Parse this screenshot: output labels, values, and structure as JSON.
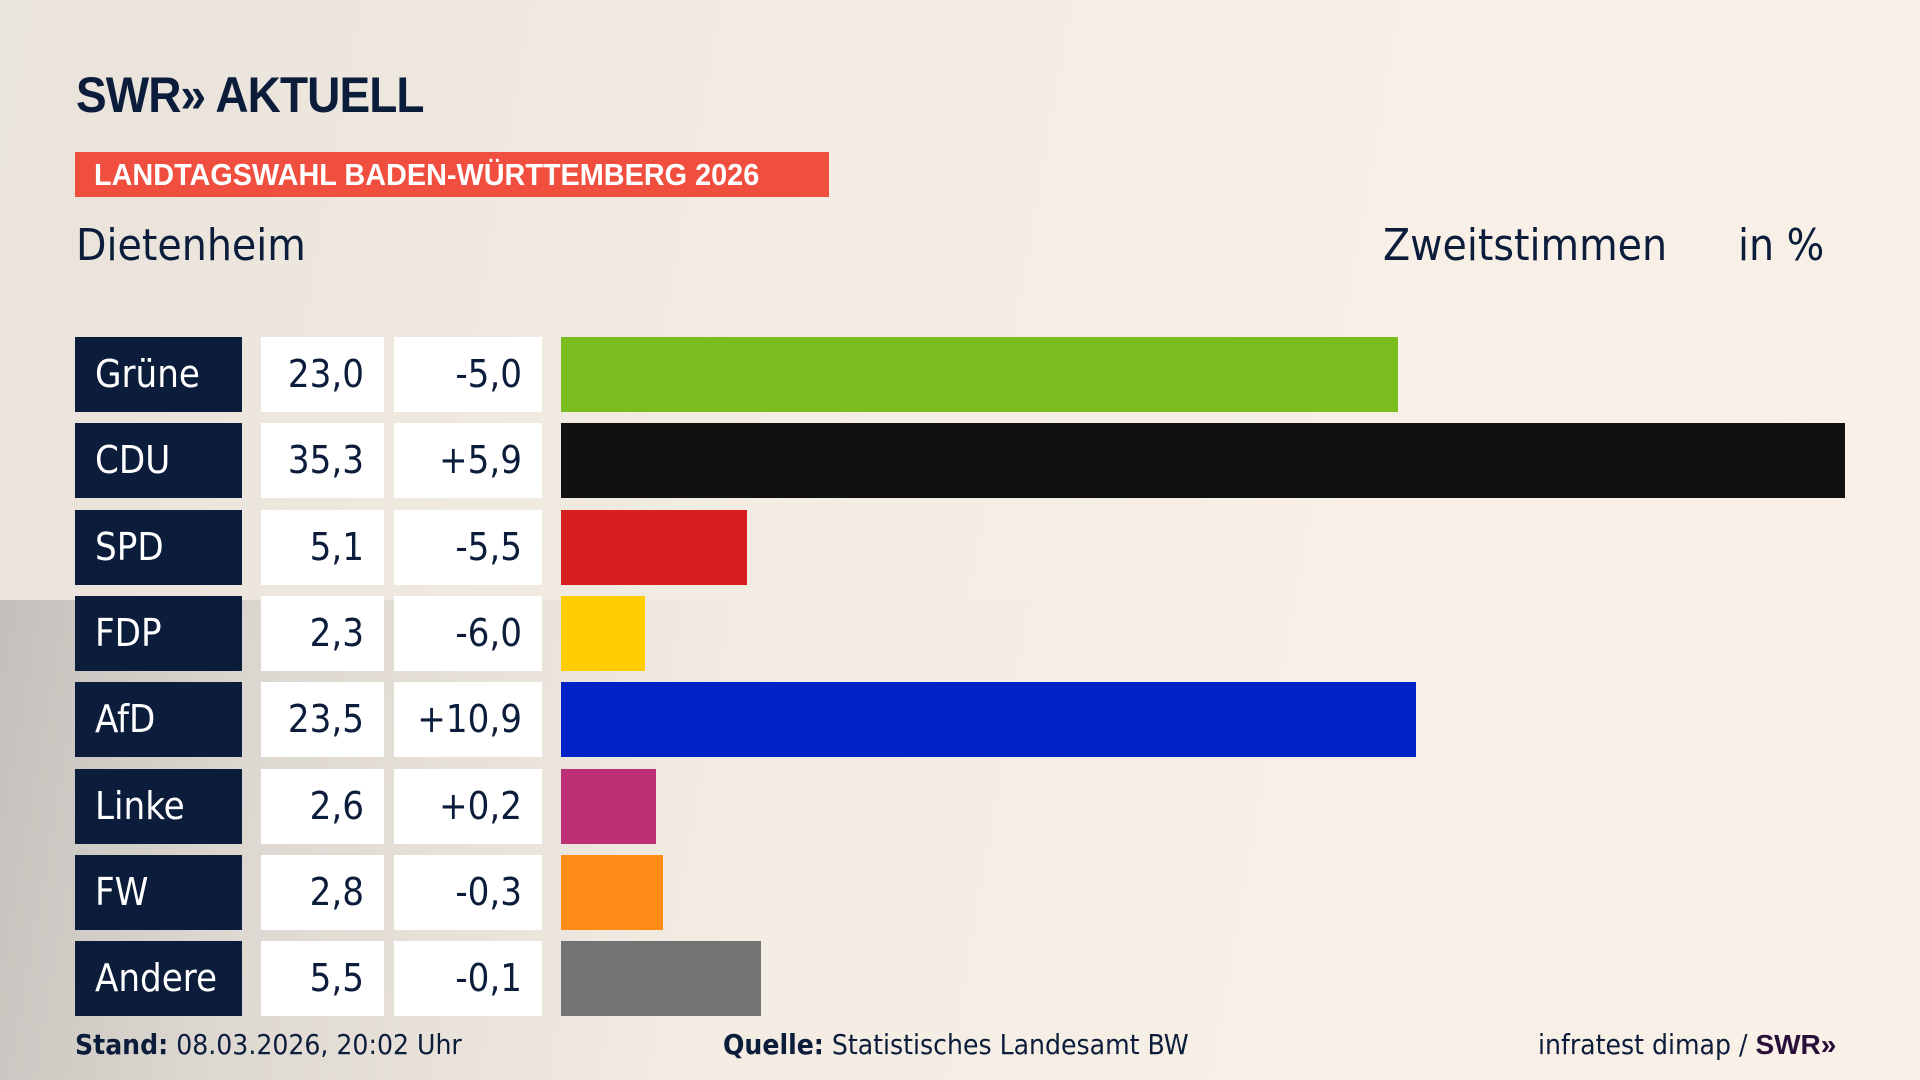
{
  "header": {
    "logo": "SWR» AKTUELL",
    "banner": "LANDTAGSWAHL BADEN-WÜRTTEMBERG 2026",
    "place": "Dietenheim",
    "measure": "Zweitstimmen",
    "unit": "in %"
  },
  "chart_data": {
    "type": "bar",
    "orientation": "horizontal",
    "categories": [
      "Grüne",
      "CDU",
      "SPD",
      "FDP",
      "AfD",
      "Linke",
      "FW",
      "Andere"
    ],
    "values": [
      23.0,
      35.3,
      5.1,
      2.3,
      23.5,
      2.6,
      2.8,
      5.5
    ],
    "value_labels": [
      "23,0",
      "35,3",
      "5,1",
      "2,3",
      "23,5",
      "2,6",
      "2,8",
      "5,5"
    ],
    "diff_labels": [
      "-5,0",
      "+5,9",
      "-5,5",
      "-6,0",
      "+10,9",
      "+0,2",
      "-0,3",
      "-0,1"
    ],
    "colors": [
      "#7bbd1e",
      "#111111",
      "#d71f1f",
      "#ffcd00",
      "#0022c7",
      "#bd3075",
      "#ff8c16",
      "#737373"
    ],
    "xlim": [
      0,
      35.3
    ]
  },
  "footer": {
    "stand_label": "Stand:",
    "stand_value": " 08.03.2026, 20:02 Uhr",
    "source_label": "Quelle:",
    "source_value": " Statistisches Landesamt BW",
    "credit": "infratest dimap / ",
    "credit_logo": "SWR»"
  }
}
